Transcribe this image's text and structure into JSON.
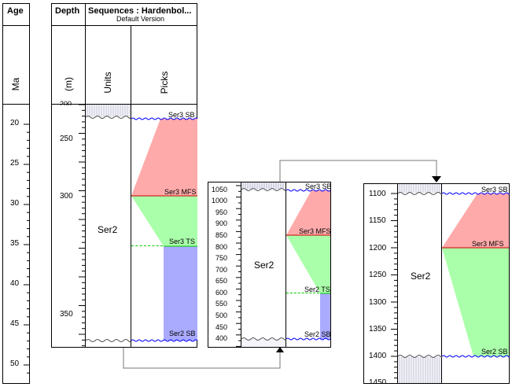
{
  "age_panel": {
    "title": "Age",
    "unit": "Ma",
    "ticks": [
      "20",
      "25",
      "30",
      "35",
      "40",
      "45",
      "50"
    ]
  },
  "main_panel": {
    "depth_title": "Depth",
    "depth_unit": "(m)",
    "sequences_title": "Sequences : Hardenbol...",
    "sequences_subtitle": "Default Version",
    "units_header": "Units",
    "picks_header": "Picks",
    "depth_ticks": [
      "200",
      "250",
      "300",
      "350"
    ],
    "unit_label": "Ser2",
    "picks": [
      "Ser3 SB",
      "Ser3 MFS",
      "Ser3 TS",
      "Ser2 SB"
    ]
  },
  "panel2": {
    "depth_ticks": [
      "1050",
      "1000",
      "950",
      "900",
      "850",
      "800",
      "750",
      "700",
      "650",
      "600",
      "550",
      "500",
      "450",
      "400"
    ],
    "unit_label": "Ser2",
    "picks": [
      "Ser3 SB",
      "Ser3 MFS",
      "Ser2 TS",
      "Ser2 SB"
    ]
  },
  "panel3": {
    "depth_ticks": [
      "1100",
      "1150",
      "1200",
      "1250",
      "1300",
      "1350",
      "1400",
      "1450"
    ],
    "unit_label": "Ser2",
    "picks": [
      "Ser3 SB",
      "Ser3 MFS",
      "Ser2 SB"
    ]
  },
  "colors": {
    "hst_red": "#ffaaaa",
    "tst_green": "#aaffaa",
    "lst_blue": "#aaaaff",
    "sb_line": "#0000ff",
    "mfs_line": "#cc0000",
    "ts_line": "#00cc00"
  }
}
